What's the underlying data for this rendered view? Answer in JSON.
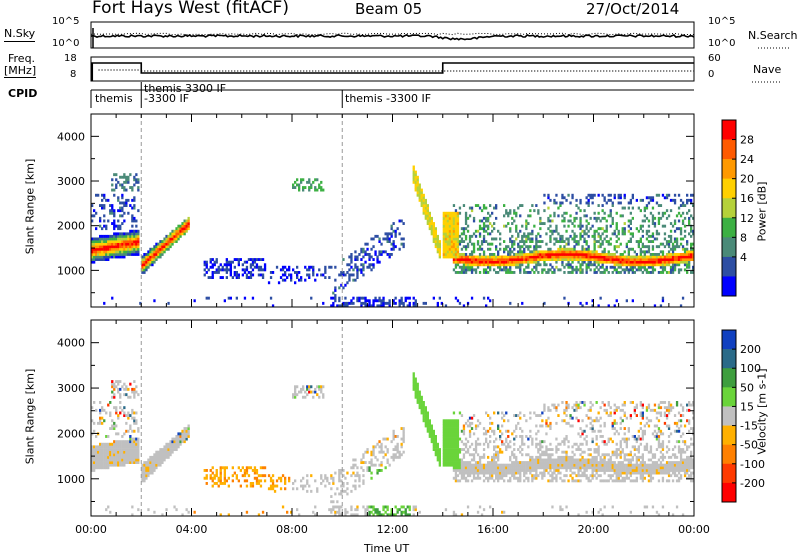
{
  "header": {
    "station": "Fort Hays West (fitACF)",
    "beam": "Beam 05",
    "date": "27/Oct/2014"
  },
  "sidebars": {
    "nsky_label": "N.Sky",
    "freq_label_1": "Freq.",
    "freq_label_2": "[MHz]",
    "cpid_label": "CPID",
    "nsearch_label": "N.Search",
    "nave_label": "Nave"
  },
  "noise_panel": {
    "left_ticks": [
      "10^5",
      "10^0"
    ],
    "right_ticks": [
      "10^5",
      "10^0"
    ]
  },
  "freq_panel": {
    "left_ticks": [
      "18",
      "8"
    ],
    "right_ticks": [
      "60",
      "0"
    ]
  },
  "cpid_panel": {
    "segments": [
      {
        "label": "themis",
        "x_start": 0,
        "x_end": 2
      },
      {
        "label": "themis 3300 IF",
        "label2": "-3300 IF",
        "x_start": 2,
        "x_end": 10
      },
      {
        "label": "themis -3300 IF",
        "x_start": 10,
        "x_end": 24
      }
    ]
  },
  "colors": {
    "power": [
      "#0000ff",
      "#2d4ea3",
      "#4a8a78",
      "#3cb043",
      "#b5d13a",
      "#ffd000",
      "#ff9900",
      "#ff5a00",
      "#ff0000"
    ],
    "velocity": [
      "#1040c0",
      "#2a6a88",
      "#3e9e3e",
      "#6ad43a",
      "#c0c0c0",
      "#ffb000",
      "#ff8000",
      "#ff3a00",
      "#ff0000"
    ]
  },
  "chart_data": [
    {
      "type": "heatmap",
      "name": "Power",
      "xlabel": "",
      "ylabel": "Slant Range [km]",
      "xlim": [
        0,
        24
      ],
      "ylim": [
        180,
        4500
      ],
      "yticks": [
        1000,
        2000,
        3000,
        4000
      ],
      "colorbar": {
        "label": "Power [dB]",
        "range": [
          0,
          32
        ],
        "ticks": [
          "28",
          "24",
          "20",
          "16",
          "12",
          "8",
          "4"
        ]
      }
    },
    {
      "type": "heatmap",
      "name": "Velocity",
      "xlabel": "Time UT",
      "ylabel": "Slant Range [km]",
      "xlim": [
        0,
        24
      ],
      "ylim": [
        180,
        4500
      ],
      "yticks": [
        1000,
        2000,
        3000,
        4000
      ],
      "xticks": [
        "00:00",
        "04:00",
        "08:00",
        "12:00",
        "16:00",
        "20:00",
        "00:00"
      ],
      "colorbar": {
        "label": "Velocity [m s-1]",
        "range": [
          -250,
          250
        ],
        "ticks": [
          "200",
          "100",
          "50",
          "15",
          "-15",
          "-50",
          "-100",
          "-200"
        ]
      }
    }
  ]
}
